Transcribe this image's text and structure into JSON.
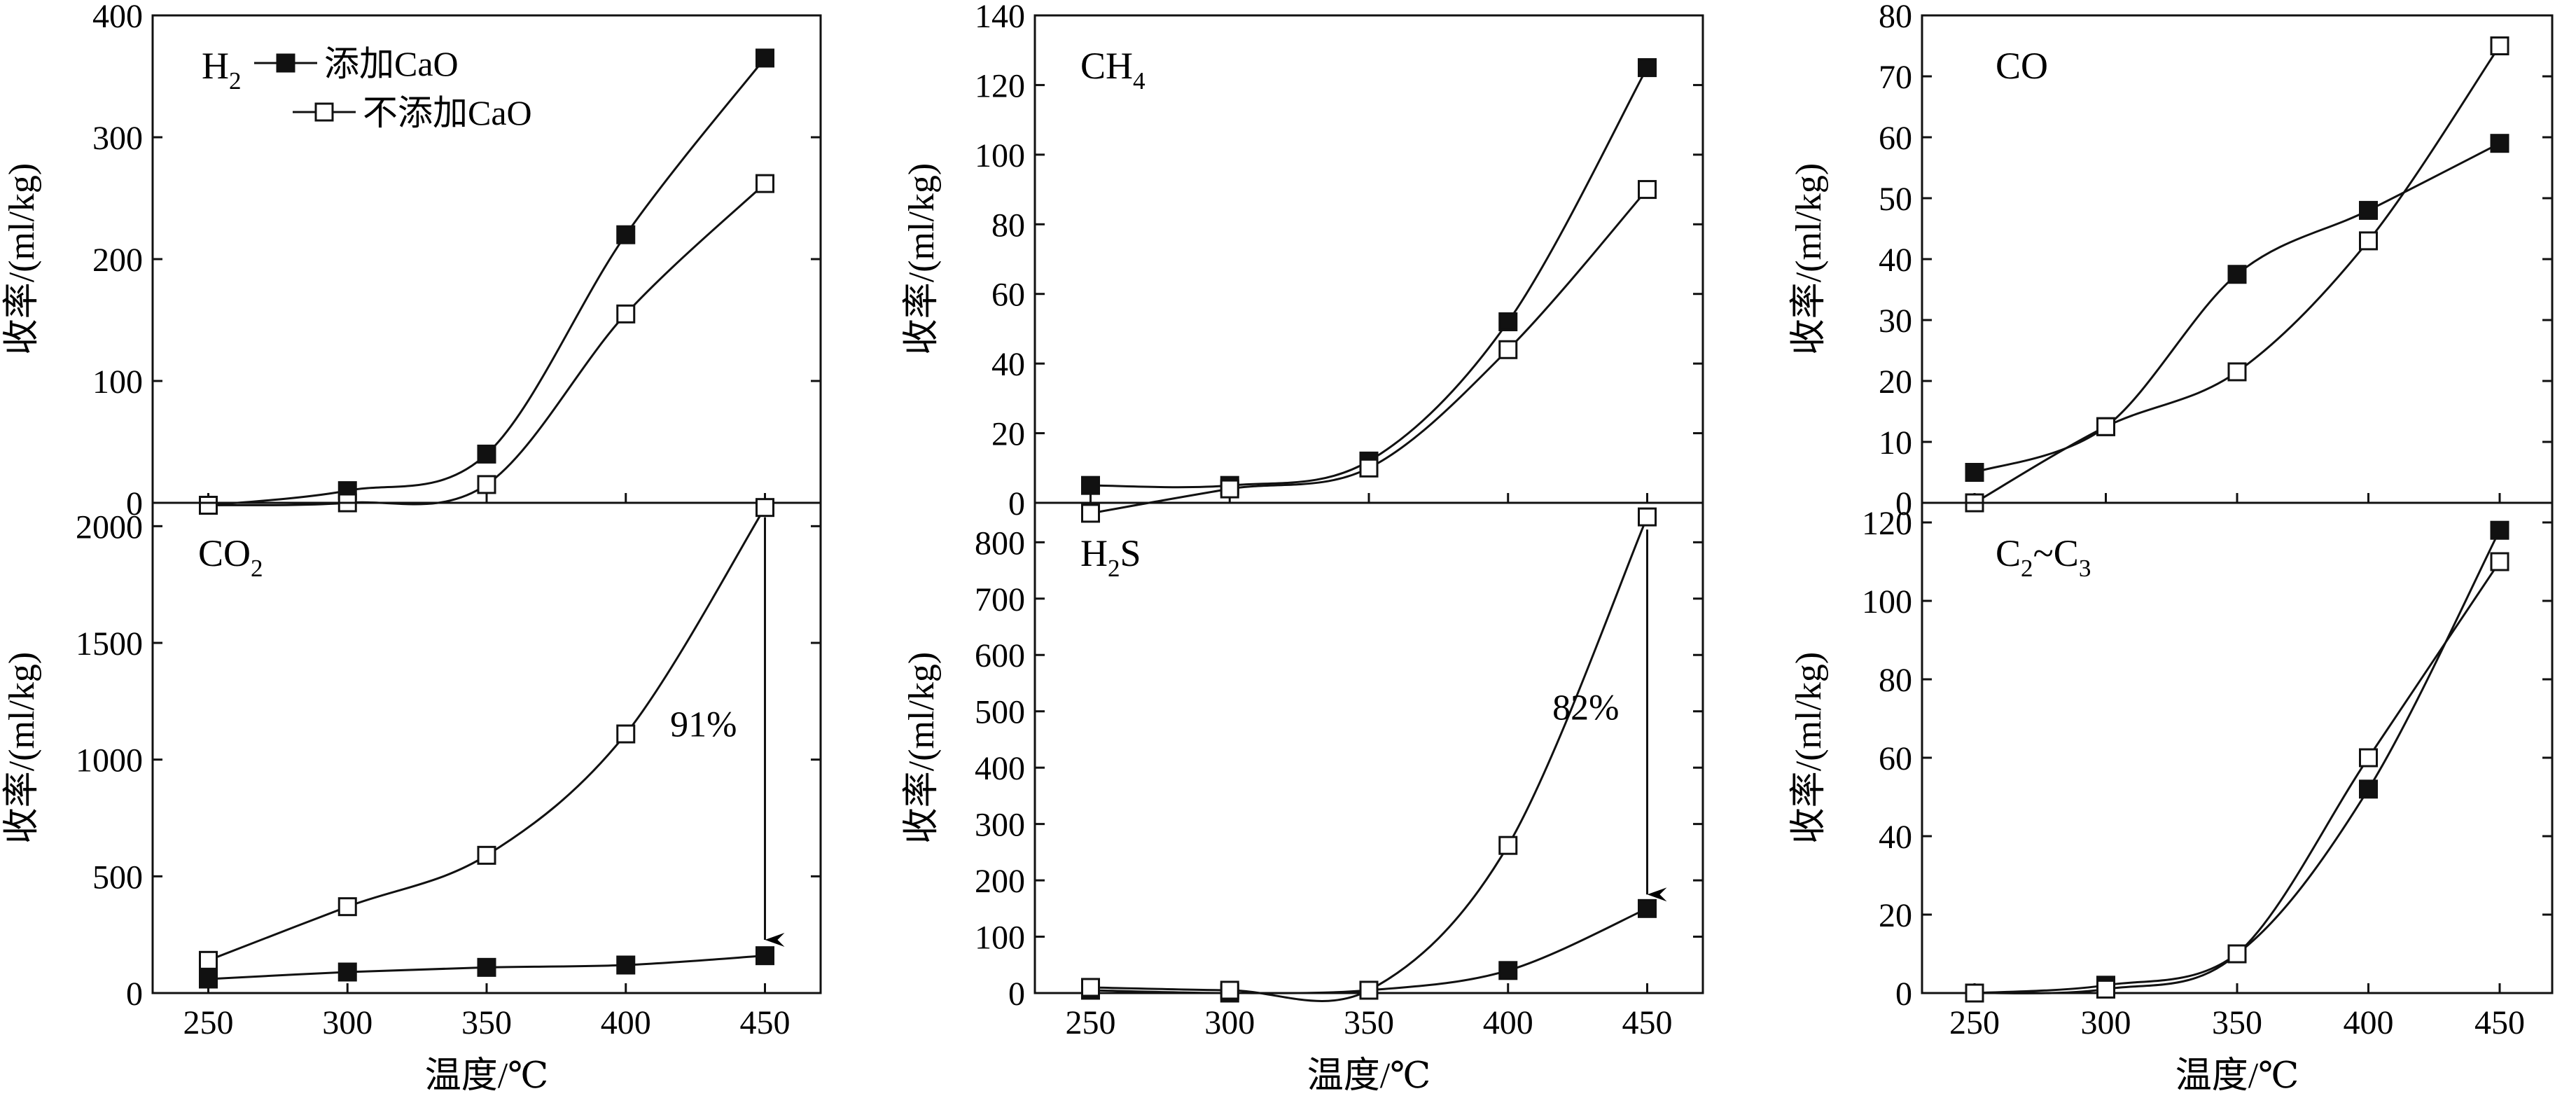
{
  "chart_data": [
    {
      "type": "line",
      "label": "H2",
      "label_parts": [
        {
          "t": "H"
        },
        {
          "t": "2",
          "sub": true
        }
      ],
      "xlabel": "温度/℃",
      "ylabel": "收率/(ml/kg)",
      "xlim": [
        230,
        470
      ],
      "ylim": [
        0,
        400
      ],
      "xticks": [
        250,
        300,
        350,
        400,
        450
      ],
      "yticks": [
        0,
        100,
        200,
        300,
        400
      ],
      "series": [
        {
          "name": "添加CaO",
          "marker": "filled",
          "x": [
            250,
            300,
            350,
            400,
            450
          ],
          "y": [
            -2,
            10,
            40,
            220,
            365
          ]
        },
        {
          "name": "不添加CaO",
          "marker": "open",
          "x": [
            250,
            300,
            350,
            400,
            450
          ],
          "y": [
            -2,
            0,
            15,
            155,
            262
          ]
        }
      ]
    },
    {
      "type": "line",
      "label": "CH4",
      "label_parts": [
        {
          "t": "CH"
        },
        {
          "t": "4",
          "sub": true
        }
      ],
      "xlabel": "温度/℃",
      "ylabel": "收率/(ml/kg)",
      "xlim": [
        230,
        470
      ],
      "ylim": [
        0,
        140
      ],
      "xticks": [
        250,
        300,
        350,
        400,
        450
      ],
      "yticks": [
        0,
        20,
        40,
        60,
        80,
        100,
        120,
        140
      ],
      "series": [
        {
          "name": "添加CaO",
          "marker": "filled",
          "x": [
            250,
            300,
            350,
            400,
            450
          ],
          "y": [
            5,
            5,
            12,
            52,
            125
          ]
        },
        {
          "name": "不添加CaO",
          "marker": "open",
          "x": [
            250,
            300,
            350,
            400,
            450
          ],
          "y": [
            -3,
            4,
            10,
            44,
            90
          ]
        }
      ]
    },
    {
      "type": "line",
      "label": "CO",
      "label_parts": [
        {
          "t": "CO"
        }
      ],
      "xlabel": "温度/℃",
      "ylabel": "收率/(ml/kg)",
      "xlim": [
        230,
        470
      ],
      "ylim": [
        0,
        80
      ],
      "xticks": [
        250,
        300,
        350,
        400,
        450
      ],
      "yticks": [
        0,
        10,
        20,
        30,
        40,
        50,
        60,
        70,
        80
      ],
      "series": [
        {
          "name": "添加CaO",
          "marker": "filled",
          "x": [
            250,
            300,
            350,
            400,
            450
          ],
          "y": [
            5,
            12.5,
            37.5,
            48,
            59
          ]
        },
        {
          "name": "不添加CaO",
          "marker": "open",
          "x": [
            250,
            300,
            350,
            400,
            450
          ],
          "y": [
            0,
            12.5,
            21.5,
            43,
            75
          ]
        }
      ]
    },
    {
      "type": "line",
      "label": "CO2",
      "label_parts": [
        {
          "t": "CO"
        },
        {
          "t": "2",
          "sub": true
        }
      ],
      "xlabel": "温度/℃",
      "ylabel": "收率/(ml/kg)",
      "xlim": [
        230,
        470
      ],
      "ylim": [
        0,
        2100
      ],
      "xticks": [
        250,
        300,
        350,
        400,
        450
      ],
      "yticks": [
        0,
        500,
        1000,
        1500,
        2000
      ],
      "annotation": {
        "text": "91%",
        "x": 450,
        "y_from": 2080,
        "y_to": 180
      },
      "series": [
        {
          "name": "添加CaO",
          "marker": "filled",
          "x": [
            250,
            300,
            350,
            400,
            450
          ],
          "y": [
            60,
            90,
            110,
            120,
            160
          ]
        },
        {
          "name": "不添加CaO",
          "marker": "open",
          "x": [
            250,
            300,
            350,
            400,
            450
          ],
          "y": [
            140,
            370,
            590,
            1110,
            2080
          ]
        }
      ]
    },
    {
      "type": "line",
      "label": "H2S",
      "label_parts": [
        {
          "t": "H"
        },
        {
          "t": "2",
          "sub": true
        },
        {
          "t": "S"
        }
      ],
      "xlabel": "温度/℃",
      "ylabel": "收率/(ml/kg)",
      "xlim": [
        230,
        470
      ],
      "ylim": [
        0,
        870
      ],
      "xticks": [
        250,
        300,
        350,
        400,
        450
      ],
      "yticks": [
        0,
        100,
        200,
        300,
        400,
        500,
        600,
        700,
        800
      ],
      "annotation": {
        "text": "82%",
        "x": 450,
        "y_from": 840,
        "y_to": 155
      },
      "series": [
        {
          "name": "添加CaO",
          "marker": "filled",
          "x": [
            250,
            300,
            350,
            400,
            450
          ],
          "y": [
            5,
            0,
            5,
            40,
            150
          ]
        },
        {
          "name": "不添加CaO",
          "marker": "open",
          "x": [
            250,
            300,
            350,
            400,
            450
          ],
          "y": [
            10,
            5,
            5,
            262,
            845
          ]
        }
      ]
    },
    {
      "type": "line",
      "label": "C2~C3",
      "label_parts": [
        {
          "t": "C"
        },
        {
          "t": "2",
          "sub": true
        },
        {
          "t": "~C"
        },
        {
          "t": "3",
          "sub": true
        }
      ],
      "xlabel": "温度/℃",
      "ylabel": "收率/(ml/kg)",
      "xlim": [
        230,
        470
      ],
      "ylim": [
        0,
        125
      ],
      "xticks": [
        250,
        300,
        350,
        400,
        450
      ],
      "yticks": [
        0,
        20,
        40,
        60,
        80,
        100,
        120
      ],
      "series": [
        {
          "name": "添加CaO",
          "marker": "filled",
          "x": [
            250,
            300,
            350,
            400,
            450
          ],
          "y": [
            0,
            2,
            10,
            52,
            118
          ]
        },
        {
          "name": "不添加CaO",
          "marker": "open",
          "x": [
            250,
            300,
            350,
            400,
            450
          ],
          "y": [
            0,
            1,
            10,
            60,
            110
          ]
        }
      ]
    }
  ]
}
